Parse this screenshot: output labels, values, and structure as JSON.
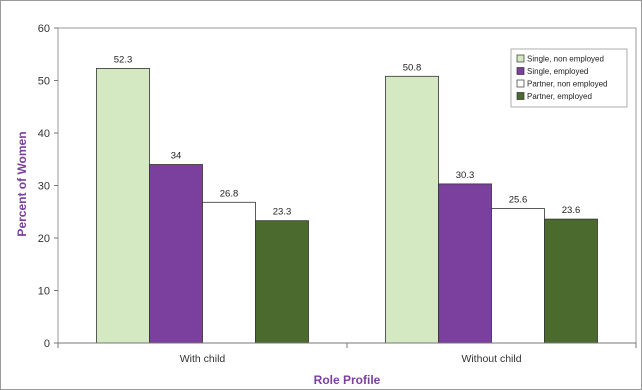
{
  "chart_data": {
    "type": "bar",
    "title": "",
    "xlabel": "Role Profile",
    "ylabel": "Percent of Women",
    "ylim": [
      0,
      60
    ],
    "yticks": [
      0,
      10,
      20,
      30,
      40,
      50,
      60
    ],
    "grid": false,
    "legend_position": "top-right",
    "categories": [
      "With child",
      "Without child"
    ],
    "series": [
      {
        "name": "Single, non employed",
        "values": [
          52.3,
          50.8
        ],
        "value_labels": [
          "52.3",
          "50.8"
        ],
        "color": "#d4e8c2"
      },
      {
        "name": "Single, employed",
        "values": [
          34,
          30.3
        ],
        "value_labels": [
          "34",
          "30.3"
        ],
        "color": "#7b3f9e"
      },
      {
        "name": "Partner, non employed",
        "values": [
          26.8,
          25.6
        ],
        "value_labels": [
          "26.8",
          "25.6"
        ],
        "color": "#ffffff"
      },
      {
        "name": "Partner, employed",
        "values": [
          23.3,
          23.6
        ],
        "value_labels": [
          "23.3",
          "23.6"
        ],
        "color": "#4a6a2e"
      }
    ],
    "axis_title_color": "#7b3f9e"
  }
}
